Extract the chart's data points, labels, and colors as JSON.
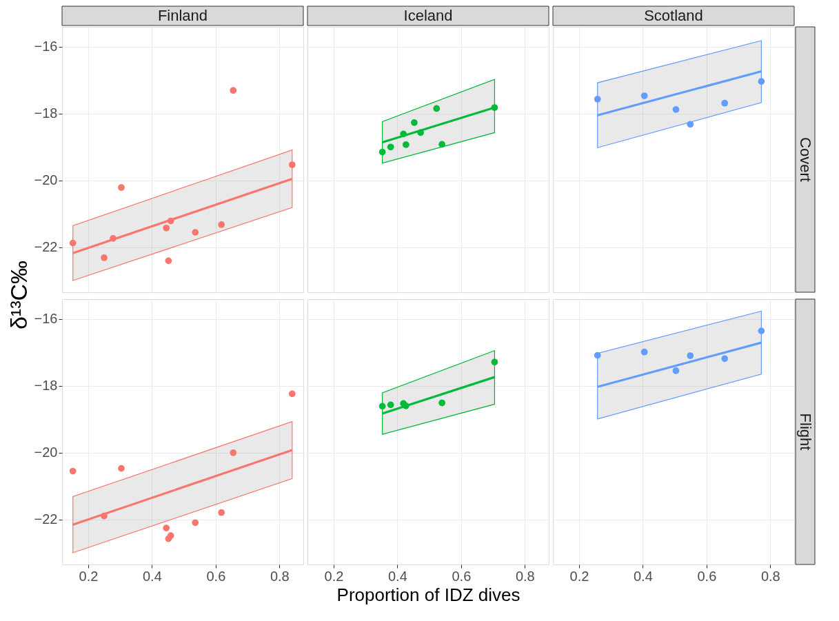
{
  "chart_data": [
    {
      "type": "scatter",
      "title": "Finland",
      "ylabel": "δ¹³C‰",
      "xlim": [
        0.118,
        0.875
      ],
      "ylim": [
        -23.34,
        -15.41
      ],
      "xticks": [
        0.2,
        0.4,
        0.6,
        0.8
      ],
      "yticks": [
        -16,
        -18,
        -20,
        -22
      ],
      "tick_labels": "y",
      "grid": true,
      "marker": "circle",
      "series": [
        {
          "type": "line",
          "marker": "none",
          "color": "#f8766d",
          "x": [
            0.152,
            0.84
          ],
          "values": [
            -22.17,
            -19.95
          ],
          "lower": [
            -22.99,
            -20.81
          ],
          "upper": [
            -21.35,
            -19.09
          ]
        },
        {
          "color": "#f8766d",
          "x": [
            0.152,
            0.25,
            0.278,
            0.304,
            0.445,
            0.452,
            0.459,
            0.536,
            0.618,
            0.655,
            0.84
          ],
          "values": [
            -21.87,
            -22.31,
            -21.73,
            -20.21,
            -21.42,
            -22.4,
            -21.21,
            -21.55,
            -21.32,
            -17.31,
            -19.53
          ]
        }
      ]
    },
    {
      "type": "scatter",
      "title": "Iceland",
      "xlim": [
        0.118,
        0.875
      ],
      "ylim": [
        -23.34,
        -15.41
      ],
      "xticks": [
        0.2,
        0.4,
        0.6,
        0.8
      ],
      "yticks": [
        -16,
        -18,
        -20,
        -22
      ],
      "tick_labels": false,
      "grid": true,
      "marker": "circle",
      "series": [
        {
          "type": "line",
          "marker": "none",
          "color": "#00ba38",
          "x": [
            0.353,
            0.705
          ],
          "values": [
            -18.86,
            -17.82
          ],
          "lower": [
            -19.48,
            -18.57
          ],
          "upper": [
            -18.24,
            -16.98
          ]
        },
        {
          "color": "#00ba38",
          "x": [
            0.353,
            0.379,
            0.419,
            0.427,
            0.453,
            0.473,
            0.523,
            0.54,
            0.705
          ],
          "values": [
            -19.15,
            -19.0,
            -18.61,
            -18.93,
            -18.27,
            -18.57,
            -17.85,
            -18.92,
            -17.82
          ]
        }
      ]
    },
    {
      "type": "scatter",
      "title": "Scotland",
      "annotations": [
        "Covert"
      ],
      "xlim": [
        0.118,
        0.875
      ],
      "ylim": [
        -23.34,
        -15.41
      ],
      "xticks": [
        0.2,
        0.4,
        0.6,
        0.8
      ],
      "yticks": [
        -16,
        -18,
        -20,
        -22
      ],
      "tick_labels": false,
      "grid": true,
      "marker": "circle",
      "series": [
        {
          "type": "line",
          "marker": "none",
          "color": "#619cff",
          "x": [
            0.258,
            0.772
          ],
          "values": [
            -18.05,
            -16.74
          ],
          "lower": [
            -19.02,
            -17.67
          ],
          "upper": [
            -17.08,
            -15.82
          ]
        },
        {
          "color": "#619cff",
          "x": [
            0.258,
            0.405,
            0.504,
            0.549,
            0.657,
            0.772
          ],
          "values": [
            -17.57,
            -17.47,
            -17.88,
            -18.32,
            -17.69,
            -17.04
          ]
        }
      ]
    },
    {
      "type": "scatter",
      "xlim": [
        0.118,
        0.875
      ],
      "ylim": [
        -23.34,
        -15.41
      ],
      "xticks": [
        0.2,
        0.4,
        0.6,
        0.8
      ],
      "yticks": [
        -16,
        -18,
        -20,
        -22
      ],
      "grid": true,
      "marker": "circle",
      "series": [
        {
          "type": "line",
          "marker": "none",
          "color": "#f8766d",
          "x": [
            0.152,
            0.84
          ],
          "values": [
            -22.15,
            -19.92
          ],
          "lower": [
            -22.99,
            -20.77
          ],
          "upper": [
            -21.31,
            -19.07
          ]
        },
        {
          "color": "#f8766d",
          "x": [
            0.152,
            0.25,
            0.304,
            0.445,
            0.452,
            0.459,
            0.536,
            0.618,
            0.655,
            0.84
          ],
          "values": [
            -20.55,
            -21.89,
            -20.47,
            -22.25,
            -22.57,
            -22.48,
            -22.09,
            -21.79,
            -20.0,
            -18.24
          ]
        }
      ]
    },
    {
      "type": "scatter",
      "xlabel": "Proportion of IDZ dives",
      "xlim": [
        0.118,
        0.875
      ],
      "ylim": [
        -23.34,
        -15.41
      ],
      "xticks": [
        0.2,
        0.4,
        0.6,
        0.8
      ],
      "yticks": [
        -16,
        -18,
        -20,
        -22
      ],
      "tick_labels": "x",
      "grid": true,
      "marker": "circle",
      "series": [
        {
          "type": "line",
          "marker": "none",
          "color": "#00ba38",
          "x": [
            0.353,
            0.705
          ],
          "values": [
            -18.83,
            -17.74
          ],
          "lower": [
            -19.45,
            -18.55
          ],
          "upper": [
            -18.21,
            -16.95
          ]
        },
        {
          "color": "#00ba38",
          "x": [
            0.353,
            0.379,
            0.419,
            0.427,
            0.54,
            0.705
          ],
          "values": [
            -18.61,
            -18.57,
            -18.53,
            -18.6,
            -18.51,
            -17.29
          ]
        }
      ]
    },
    {
      "type": "scatter",
      "annotations": [
        "Flight"
      ],
      "xlim": [
        0.118,
        0.875
      ],
      "ylim": [
        -23.34,
        -15.41
      ],
      "xticks": [
        0.2,
        0.4,
        0.6,
        0.8
      ],
      "yticks": [
        -16,
        -18,
        -20,
        -22
      ],
      "tick_labels": "x",
      "grid": true,
      "marker": "circle",
      "series": [
        {
          "type": "line",
          "marker": "none",
          "color": "#619cff",
          "x": [
            0.258,
            0.772
          ],
          "values": [
            -18.03,
            -16.71
          ],
          "lower": [
            -18.99,
            -17.65
          ],
          "upper": [
            -17.03,
            -15.77
          ]
        },
        {
          "color": "#619cff",
          "x": [
            0.258,
            0.405,
            0.504,
            0.549,
            0.657,
            0.772
          ],
          "values": [
            -17.09,
            -16.99,
            -17.55,
            -17.1,
            -17.19,
            -16.36
          ]
        }
      ]
    }
  ]
}
